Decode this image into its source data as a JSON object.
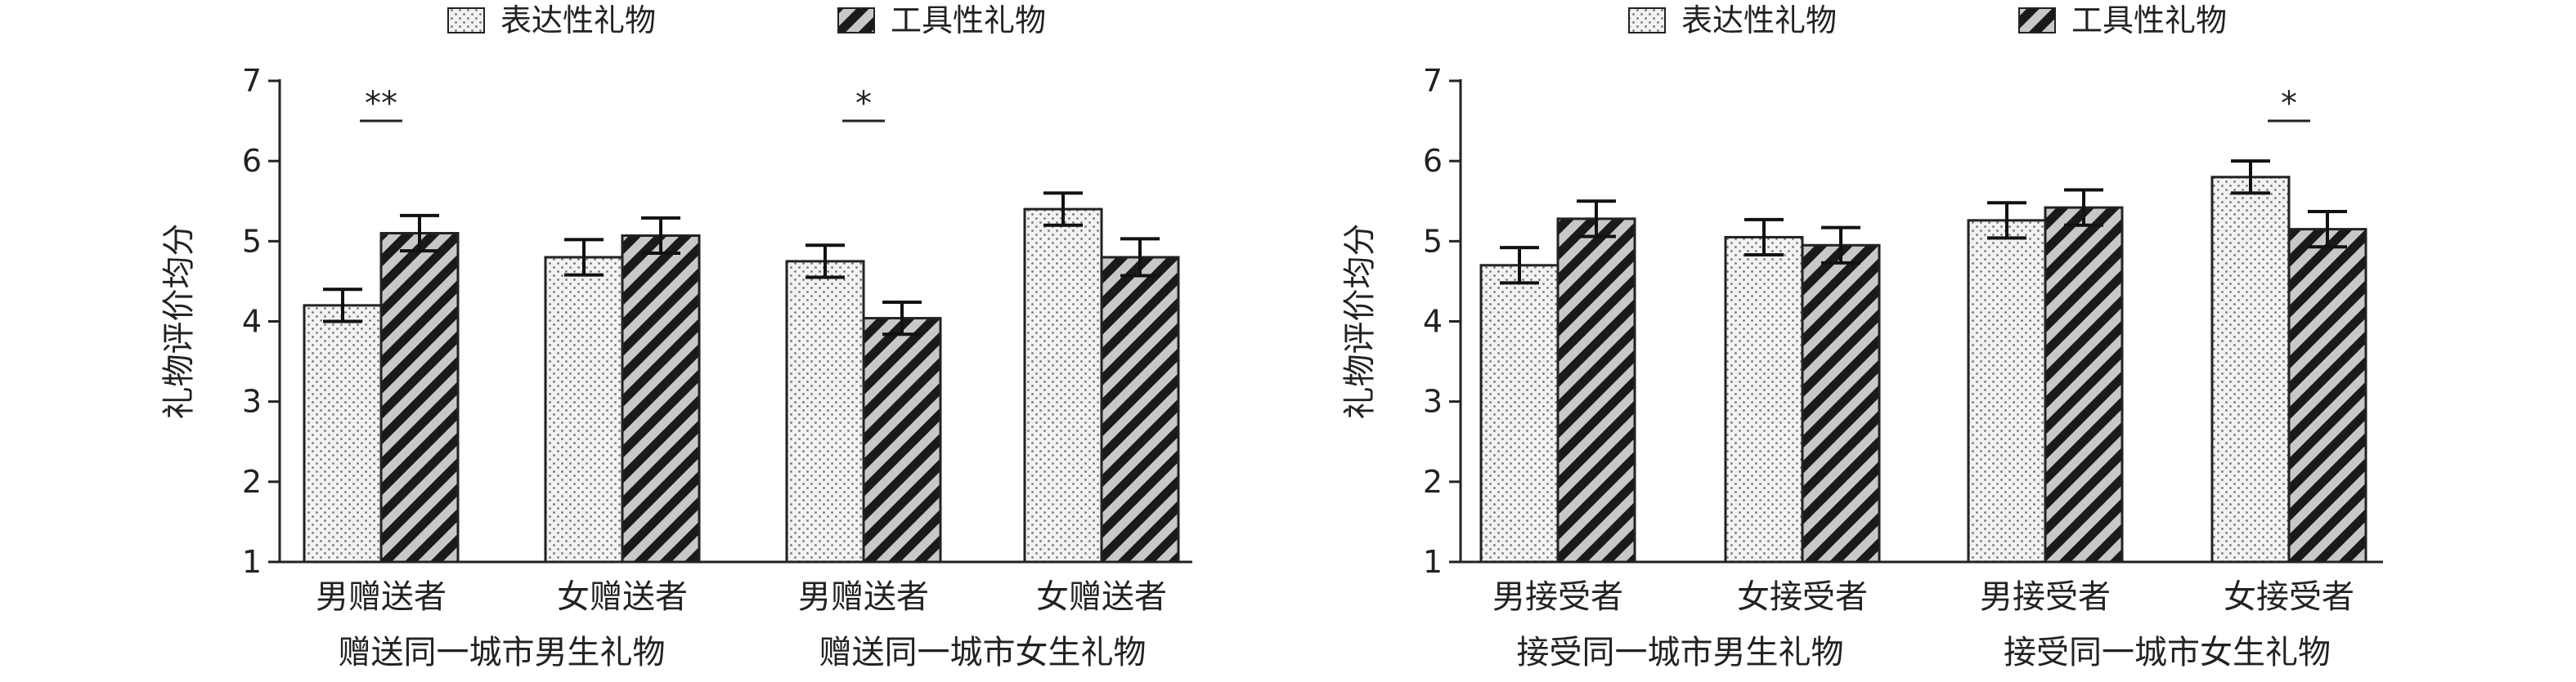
{
  "chart_data": [
    {
      "type": "bar",
      "legend": {
        "position": "top",
        "entries": [
          "表达性礼物",
          "工具性礼物"
        ]
      },
      "ylabel": "礼物评价均分",
      "ylim": [
        1,
        7
      ],
      "yticks": [
        "1",
        "2",
        "3",
        "4",
        "5",
        "6",
        "7"
      ],
      "categories": [
        "男赠送者",
        "女赠送者",
        "男赠送者",
        "女赠送者"
      ],
      "group_labels": [
        "赠送同一城市男生礼物",
        "赠送同一城市女生礼物"
      ],
      "series": [
        {
          "name": "表达性礼物",
          "values": [
            4.2,
            4.8,
            4.75,
            5.4
          ],
          "errors": [
            0.2,
            0.22,
            0.2,
            0.2
          ]
        },
        {
          "name": "工具性礼物",
          "values": [
            5.1,
            5.07,
            4.04,
            4.8
          ],
          "errors": [
            0.22,
            0.22,
            0.2,
            0.23
          ]
        }
      ],
      "significance": [
        "**",
        "",
        "*",
        ""
      ],
      "colors": {
        "expressive": "#ececec",
        "instrumental": "#bdbdbd"
      }
    },
    {
      "type": "bar",
      "legend": {
        "position": "top",
        "entries": [
          "表达性礼物",
          "工具性礼物"
        ]
      },
      "ylabel": "礼物评价均分",
      "ylim": [
        1,
        7
      ],
      "yticks": [
        "1",
        "2",
        "3",
        "4",
        "5",
        "6",
        "7"
      ],
      "categories": [
        "男接受者",
        "女接受者",
        "男接受者",
        "女接受者"
      ],
      "group_labels": [
        "接受同一城市男生礼物",
        "接受同一城市女生礼物"
      ],
      "series": [
        {
          "name": "表达性礼物",
          "values": [
            4.7,
            5.05,
            5.26,
            5.8
          ],
          "errors": [
            0.22,
            0.22,
            0.22,
            0.2
          ]
        },
        {
          "name": "工具性礼物",
          "values": [
            5.28,
            4.95,
            5.42,
            5.15
          ],
          "errors": [
            0.22,
            0.22,
            0.22,
            0.22
          ]
        }
      ],
      "significance": [
        "",
        "",
        "",
        "*"
      ],
      "colors": {
        "expressive": "#ececec",
        "instrumental": "#bdbdbd"
      }
    }
  ]
}
